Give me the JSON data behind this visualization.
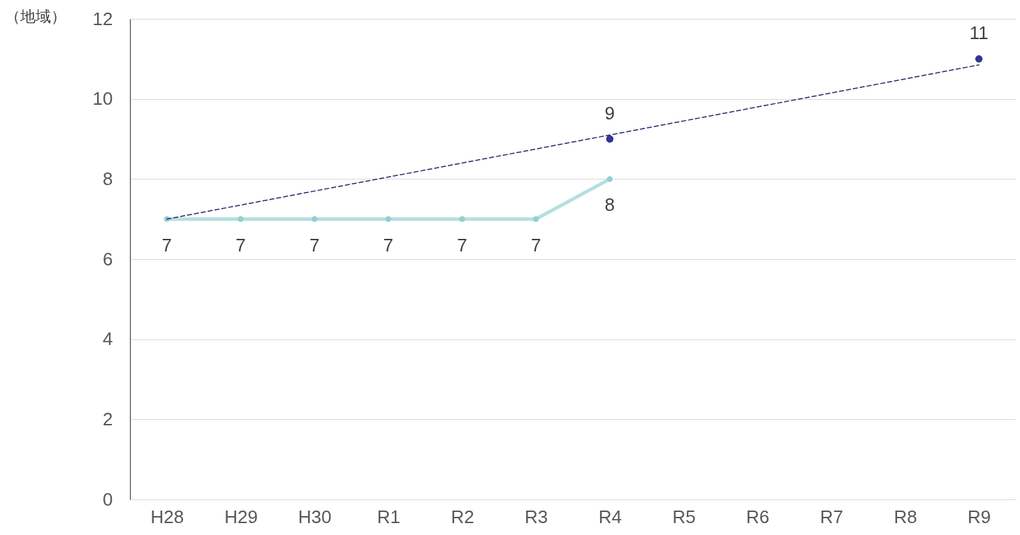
{
  "chart_data": {
    "type": "line",
    "ylabel": "（地域）",
    "categories": [
      "H28",
      "H29",
      "H30",
      "R1",
      "R2",
      "R3",
      "R4",
      "R5",
      "R6",
      "R7",
      "R8",
      "R9"
    ],
    "series": [
      {
        "color": "#b4dfe0",
        "marker": "circle",
        "values": [
          7,
          7,
          7,
          7,
          7,
          7,
          8,
          null,
          null,
          null,
          null,
          null
        ],
        "value_labels": [
          "7",
          "7",
          "7",
          "7",
          "7",
          "7",
          "8",
          null,
          null,
          null,
          null,
          null
        ]
      },
      {
        "type": "scatter",
        "color": "#333399",
        "marker": "circle",
        "values": [
          null,
          null,
          null,
          null,
          null,
          null,
          9,
          null,
          null,
          null,
          null,
          11
        ],
        "value_labels": [
          null,
          null,
          null,
          null,
          null,
          null,
          "9",
          null,
          null,
          null,
          null,
          "11"
        ]
      },
      {
        "type": "line",
        "color": "#2a2a6e",
        "line_style": "dashed",
        "marker": "none",
        "x": [
          "H28",
          "R9"
        ],
        "values": [
          7,
          10.85
        ]
      }
    ],
    "ylim": [
      0,
      12
    ],
    "yticks": [
      0,
      2,
      4,
      6,
      8,
      10,
      12
    ],
    "grid": "y"
  }
}
